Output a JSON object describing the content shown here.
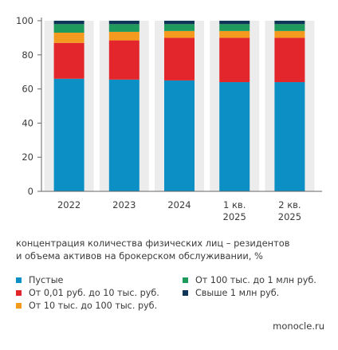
{
  "chart_data": {
    "type": "bar",
    "stacked": true,
    "categories": [
      "2022",
      "2023",
      "2024",
      "1 кв.|2025",
      "2 кв.|2025"
    ],
    "ylim": [
      0,
      100
    ],
    "yticks": [
      0,
      20,
      40,
      60,
      80,
      100
    ],
    "grid": false,
    "legend_position": "bottom",
    "series": [
      {
        "name": "Пустые",
        "color": "#0C8FC4",
        "values": [
          66,
          65.5,
          65,
          64,
          64
        ]
      },
      {
        "name": "От 0,01 руб. до 10 тыс. руб.",
        "color": "#E3262B",
        "values": [
          21,
          23,
          25,
          26,
          26
        ]
      },
      {
        "name": "От 10 тыс. до 100 тыс. руб.",
        "color": "#F49B1F",
        "values": [
          6,
          5,
          4,
          4,
          4
        ]
      },
      {
        "name": "От 100 тыс. до 1 млн руб.",
        "color": "#1D9A5C",
        "values": [
          5,
          4.5,
          4,
          4,
          4
        ]
      },
      {
        "name": "Свыше 1 млн руб.",
        "color": "#0F3557",
        "values": [
          2,
          2,
          2,
          2,
          2
        ]
      }
    ]
  },
  "caption": {
    "line1": "концентрация количества физических лиц – резидентов",
    "line2": "и объема активов на брокерском обслуживании, %"
  },
  "legend": [
    {
      "label": "Пустые",
      "color": "#0C8FC4"
    },
    {
      "label": "От 0,01 руб. до 10 тыс. руб.",
      "color": "#E3262B"
    },
    {
      "label": "От 10 тыс. до 100 тыс. руб.",
      "color": "#F49B1F"
    },
    {
      "label": "От 100 тыс. до 1 млн руб.",
      "color": "#1D9A5C"
    },
    {
      "label": "Свыше 1 млн руб.",
      "color": "#0F3557"
    }
  ],
  "source": "monocle.ru",
  "colors": {
    "axis": "#666666",
    "text": "#3a3a3a",
    "column_background": "#ececec"
  }
}
